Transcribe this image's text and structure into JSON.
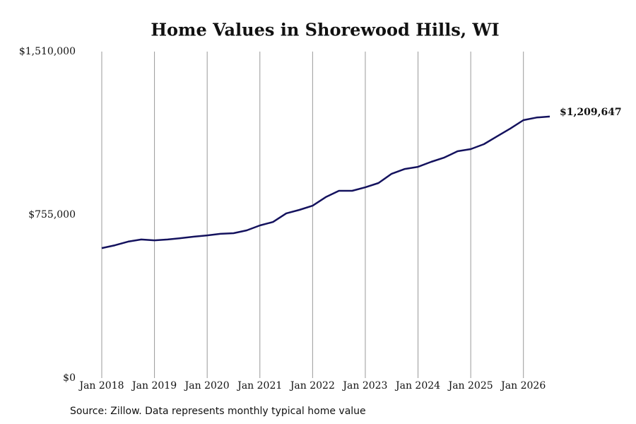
{
  "chart_data": {
    "type": "line",
    "title": "Home Values in Shorewood Hills, WI",
    "source": "Source: Zillow. Data represents monthly typical home value",
    "x": [
      "2018-01",
      "2018-04",
      "2018-07",
      "2018-10",
      "2019-01",
      "2019-04",
      "2019-07",
      "2019-10",
      "2020-01",
      "2020-04",
      "2020-07",
      "2020-10",
      "2021-01",
      "2021-04",
      "2021-07",
      "2021-10",
      "2022-01",
      "2022-04",
      "2022-07",
      "2022-10",
      "2023-01",
      "2023-04",
      "2023-07",
      "2023-10",
      "2024-01",
      "2024-04",
      "2024-07",
      "2024-10",
      "2025-01",
      "2025-04",
      "2025-07",
      "2025-10",
      "2026-01",
      "2026-04",
      "2026-07"
    ],
    "values": [
      601000,
      614000,
      631000,
      641000,
      637000,
      641000,
      647000,
      654000,
      660000,
      667000,
      670000,
      683000,
      706000,
      722000,
      762000,
      778000,
      797000,
      837000,
      866000,
      866000,
      882000,
      902000,
      945000,
      967000,
      977000,
      1000000,
      1020000,
      1049000,
      1059000,
      1082000,
      1118000,
      1154000,
      1193000,
      1205000,
      1209647
    ],
    "value_labels": [
      null,
      null,
      null,
      null,
      null,
      null,
      null,
      null,
      null,
      null,
      null,
      null,
      null,
      null,
      null,
      null,
      null,
      null,
      null,
      null,
      null,
      null,
      null,
      null,
      null,
      null,
      null,
      null,
      null,
      null,
      null,
      null,
      null,
      null,
      "$1,209,647"
    ],
    "color": "#14125e",
    "xlim": [
      "2018-01",
      "2026-07"
    ],
    "xticks": [
      {
        "value": "2018-01",
        "label": "Jan 2018"
      },
      {
        "value": "2019-01",
        "label": "Jan 2019"
      },
      {
        "value": "2020-01",
        "label": "Jan 2020"
      },
      {
        "value": "2021-01",
        "label": "Jan 2021"
      },
      {
        "value": "2022-01",
        "label": "Jan 2022"
      },
      {
        "value": "2023-01",
        "label": "Jan 2023"
      },
      {
        "value": "2024-01",
        "label": "Jan 2024"
      },
      {
        "value": "2025-01",
        "label": "Jan 2025"
      },
      {
        "value": "2026-01",
        "label": "Jan 2026"
      }
    ],
    "ylim": [
      0,
      1510000
    ],
    "yticks": [
      {
        "value": 0,
        "label": "$0"
      },
      {
        "value": 755000,
        "label": "$755,000"
      },
      {
        "value": 1510000,
        "label": "$1,510,000"
      }
    ],
    "grid": "x"
  }
}
